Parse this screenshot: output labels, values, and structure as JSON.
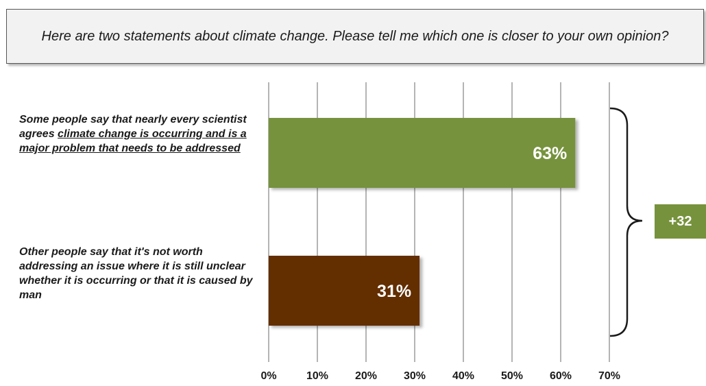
{
  "question": "Here are two statements about climate change. Please tell me which one is closer to your own opinion?",
  "statements": [
    {
      "prefix": "Some people say that nearly every scientist agrees ",
      "emphasis": "climate change is occurring and is a major problem that needs to be addressed"
    },
    {
      "text": "Other people say that it's not worth addressing an issue where it is still unclear whether it is occurring or that it is caused by man"
    }
  ],
  "difference_label": "+32",
  "colors": {
    "agree_bar": "#76923c",
    "disagree_bar": "#632f00",
    "badge": "#76923c"
  },
  "chart_data": {
    "type": "bar",
    "orientation": "horizontal",
    "categories": [
      "climate change is occurring and is a major problem",
      "not worth addressing"
    ],
    "values": [
      63,
      31
    ],
    "value_labels": [
      "63%",
      "31%"
    ],
    "xlim": [
      0,
      70
    ],
    "xticks": [
      0,
      10,
      20,
      30,
      40,
      50,
      60,
      70
    ],
    "xtick_labels": [
      "0%",
      "10%",
      "20%",
      "30%",
      "40%",
      "50%",
      "60%",
      "70%"
    ],
    "grid": true
  }
}
